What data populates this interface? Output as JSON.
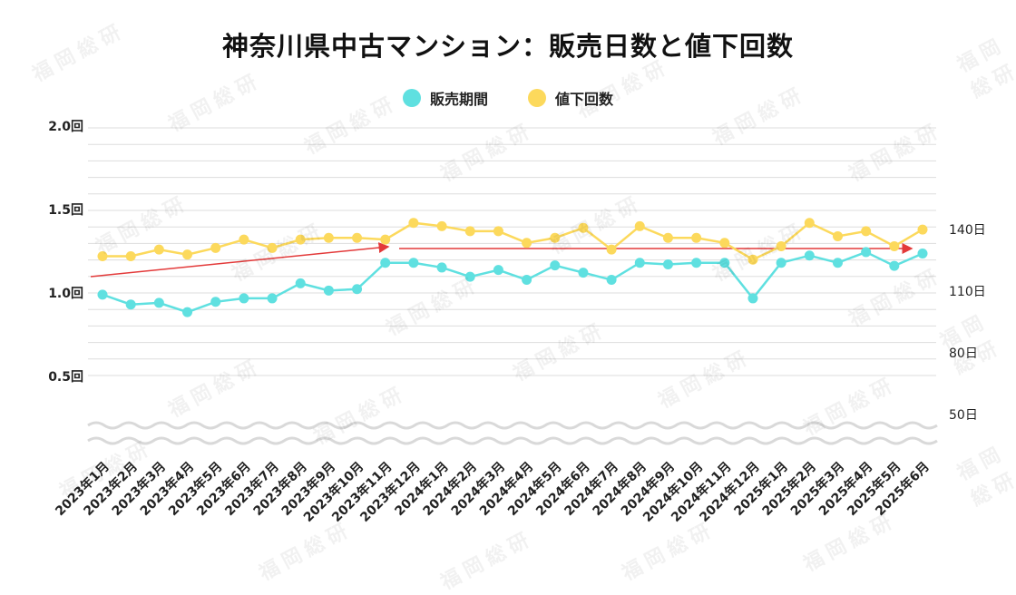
{
  "watermark": "福岡総研",
  "chart_data": {
    "type": "line",
    "title": "神奈川県中古マンション：販売日数と値下回数",
    "categories": [
      "2023年1月",
      "2023年2月",
      "2023年3月",
      "2023年4月",
      "2023年5月",
      "2023年6月",
      "2023年7月",
      "2023年8月",
      "2023年9月",
      "2023年10月",
      "2023年11月",
      "2023年12月",
      "2024年1月",
      "2024年2月",
      "2024年3月",
      "2024年4月",
      "2024年5月",
      "2024年6月",
      "2024年7月",
      "2024年8月",
      "2024年9月",
      "2024年10月",
      "2024年11月",
      "2024年12月",
      "2025年1月",
      "2025年2月",
      "2025年3月",
      "2025年4月",
      "2025年5月",
      "2025年6月"
    ],
    "series": [
      {
        "name": "販売期間",
        "axis": "right",
        "color": "#5fe0e0",
        "values": [
          108.3,
          103.5,
          104.3,
          99.8,
          104.8,
          106.5,
          106.5,
          113.8,
          110.3,
          111.0,
          123.8,
          123.8,
          121.5,
          117.0,
          120.3,
          115.5,
          122.5,
          119.0,
          115.5,
          123.8,
          123.0,
          123.8,
          123.8,
          106.5,
          123.8,
          127.3,
          123.8,
          129.0,
          122.3,
          128.3
        ]
      },
      {
        "name": "値下回数",
        "axis": "left",
        "color": "#fcd95c",
        "values": [
          1.22,
          1.22,
          1.26,
          1.23,
          1.27,
          1.32,
          1.27,
          1.32,
          1.33,
          1.33,
          1.32,
          1.42,
          1.4,
          1.37,
          1.37,
          1.3,
          1.33,
          1.39,
          1.26,
          1.4,
          1.33,
          1.33,
          1.3,
          1.2,
          1.28,
          1.42,
          1.34,
          1.37,
          1.28,
          1.38
        ]
      }
    ],
    "left_axis": {
      "ticks": [
        {
          "v": 0.5,
          "label": "0.5回"
        },
        {
          "v": 1.0,
          "label": "1.0回"
        },
        {
          "v": 1.5,
          "label": "1.5回"
        },
        {
          "v": 2.0,
          "label": "2.0回"
        }
      ],
      "range": [
        0.5,
        2.0
      ],
      "axis_break": true
    },
    "right_axis": {
      "ticks": [
        {
          "v": 50,
          "label": "50日"
        },
        {
          "v": 80,
          "label": "80日"
        },
        {
          "v": 110,
          "label": "110日"
        },
        {
          "v": 140,
          "label": "140日"
        }
      ]
    },
    "grid": true,
    "legend_position": "top-center"
  },
  "colors": {
    "grid": "#dddddd",
    "wave": "#d9d9d9",
    "trend_arrow": "#e33a3a"
  }
}
